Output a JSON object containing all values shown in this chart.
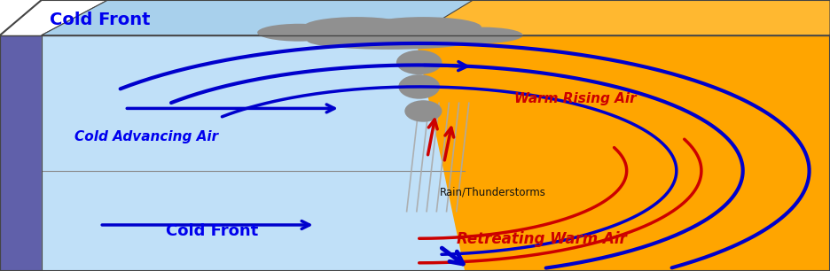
{
  "bg_warm_color": "#FFA500",
  "bg_cold_color": "#B8D8F0",
  "cold_front_label_top": "Cold Front",
  "cold_front_label_bottom": "Cold Front",
  "cold_advancing_label": "Cold Advancing Air",
  "warm_rising_label": "Warm Rising Air",
  "retreating_warm_label": "Retreating Warm Air",
  "rain_label": "Rain/Thunderstorms",
  "label_color_blue": "#0000EE",
  "label_color_red": "#CC0000",
  "label_color_black": "#111111",
  "blue_arrow_color": "#0000CC",
  "red_arrow_color": "#CC0000",
  "cloud_color": "#909090",
  "figwidth": 9.36,
  "figheight": 3.06,
  "dpi": 100
}
